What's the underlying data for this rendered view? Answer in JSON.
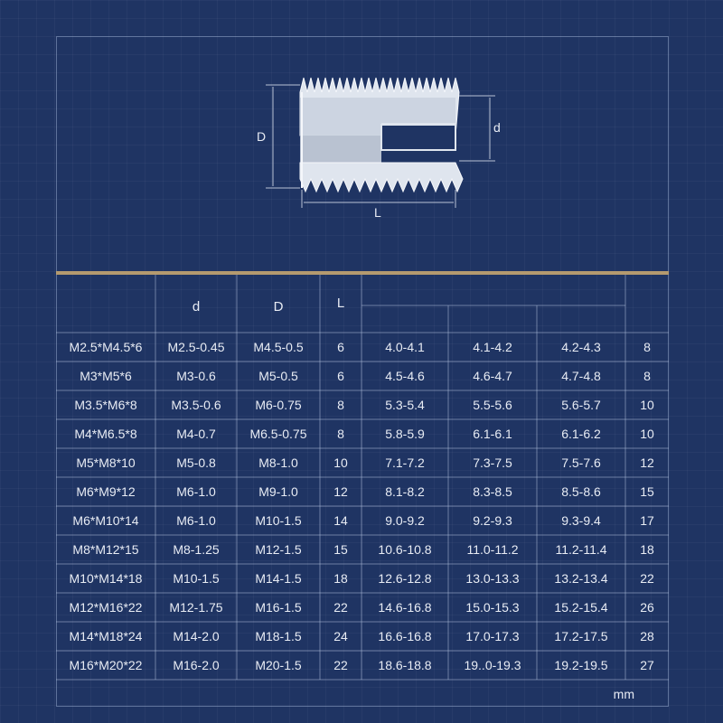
{
  "diagram": {
    "label_D": "D",
    "label_d": "d",
    "label_L": "L"
  },
  "table": {
    "headers": [
      "",
      "d",
      "D",
      "L",
      "",
      "",
      "",
      ""
    ],
    "rows": [
      [
        "M2.5*M4.5*6",
        "M2.5-0.45",
        "M4.5-0.5",
        "6",
        "4.0-4.1",
        "4.1-4.2",
        "4.2-4.3",
        "8"
      ],
      [
        "M3*M5*6",
        "M3-0.6",
        "M5-0.5",
        "6",
        "4.5-4.6",
        "4.6-4.7",
        "4.7-4.8",
        "8"
      ],
      [
        "M3.5*M6*8",
        "M3.5-0.6",
        "M6-0.75",
        "8",
        "5.3-5.4",
        "5.5-5.6",
        "5.6-5.7",
        "10"
      ],
      [
        "M4*M6.5*8",
        "M4-0.7",
        "M6.5-0.75",
        "8",
        "5.8-5.9",
        "6.1-6.1",
        "6.1-6.2",
        "10"
      ],
      [
        "M5*M8*10",
        "M5-0.8",
        "M8-1.0",
        "10",
        "7.1-7.2",
        "7.3-7.5",
        "7.5-7.6",
        "12"
      ],
      [
        "M6*M9*12",
        "M6-1.0",
        "M9-1.0",
        "12",
        "8.1-8.2",
        "8.3-8.5",
        "8.5-8.6",
        "15"
      ],
      [
        "M6*M10*14",
        "M6-1.0",
        "M10-1.5",
        "14",
        "9.0-9.2",
        "9.2-9.3",
        "9.3-9.4",
        "17"
      ],
      [
        "M8*M12*15",
        "M8-1.25",
        "M12-1.5",
        "15",
        "10.6-10.8",
        "11.0-11.2",
        "11.2-11.4",
        "18"
      ],
      [
        "M10*M14*18",
        "M10-1.5",
        "M14-1.5",
        "18",
        "12.6-12.8",
        "13.0-13.3",
        "13.2-13.4",
        "22"
      ],
      [
        "M12*M16*22",
        "M12-1.75",
        "M16-1.5",
        "22",
        "14.6-16.8",
        "15.0-15.3",
        "15.2-15.4",
        "26"
      ],
      [
        "M14*M18*24",
        "M14-2.0",
        "M18-1.5",
        "24",
        "16.6-16.8",
        "17.0-17.3",
        "17.2-17.5",
        "28"
      ],
      [
        "M16*M20*22",
        "M16-2.0",
        "M20-1.5",
        "22",
        "18.6-18.8",
        "19..0-19.3",
        "19.2-19.5",
        "27"
      ]
    ],
    "unit": "mm"
  }
}
